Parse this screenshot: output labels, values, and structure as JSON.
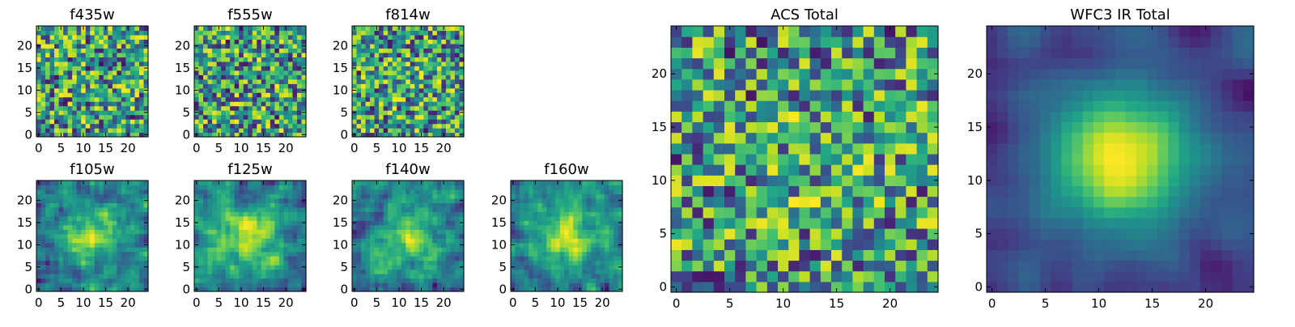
{
  "chart_data": {
    "type": "heatmap",
    "colormap": "viridis",
    "grid": "25x25 pixel cutouts (random noise field)",
    "panels": [
      {
        "name": "f435w",
        "title": "f435w",
        "xticks": [
          "0",
          "5",
          "10",
          "15",
          "20"
        ],
        "yticks": [
          "0",
          "5",
          "10",
          "15",
          "20"
        ],
        "xlim": [
          0,
          25
        ],
        "ylim": [
          0,
          25
        ],
        "seed": 11,
        "smooth": 0,
        "blob": 0.0,
        "noise": 1.0
      },
      {
        "name": "f555w",
        "title": "f555w",
        "xticks": [
          "0",
          "5",
          "10",
          "15",
          "20"
        ],
        "yticks": [
          "0",
          "5",
          "10",
          "15",
          "20"
        ],
        "xlim": [
          0,
          25
        ],
        "ylim": [
          0,
          25
        ],
        "seed": 23,
        "smooth": 0,
        "blob": 0.0,
        "noise": 1.0
      },
      {
        "name": "f814w",
        "title": "f814w",
        "xticks": [
          "0",
          "5",
          "10",
          "15",
          "20"
        ],
        "yticks": [
          "0",
          "5",
          "10",
          "15",
          "20"
        ],
        "xlim": [
          0,
          25
        ],
        "ylim": [
          0,
          25
        ],
        "seed": 37,
        "smooth": 0,
        "blob": 0.05,
        "noise": 1.0
      },
      {
        "name": "f105w",
        "title": "f105w",
        "xticks": [
          "0",
          "5",
          "10",
          "15",
          "20"
        ],
        "yticks": [
          "0",
          "5",
          "10",
          "15",
          "20"
        ],
        "xlim": [
          0,
          25
        ],
        "ylim": [
          0,
          25
        ],
        "seed": 41,
        "smooth": 1,
        "blob": 0.25,
        "noise": 0.6
      },
      {
        "name": "f125w",
        "title": "f125w",
        "xticks": [
          "0",
          "5",
          "10",
          "15",
          "20"
        ],
        "yticks": [
          "0",
          "5",
          "10",
          "15",
          "20"
        ],
        "xlim": [
          0,
          25
        ],
        "ylim": [
          0,
          25
        ],
        "seed": 53,
        "smooth": 1,
        "blob": 0.25,
        "noise": 0.6
      },
      {
        "name": "f140w",
        "title": "f140w",
        "xticks": [
          "0",
          "5",
          "10",
          "15",
          "20"
        ],
        "yticks": [
          "0",
          "5",
          "10",
          "15",
          "20"
        ],
        "xlim": [
          0,
          25
        ],
        "ylim": [
          0,
          25
        ],
        "seed": 67,
        "smooth": 1,
        "blob": 0.2,
        "noise": 0.6
      },
      {
        "name": "f160w",
        "title": "f160w",
        "xticks": [
          "0",
          "5",
          "10",
          "15",
          "20"
        ],
        "yticks": [
          "0",
          "5",
          "10",
          "15",
          "20"
        ],
        "xlim": [
          0,
          25
        ],
        "ylim": [
          0,
          25
        ],
        "seed": 79,
        "smooth": 1,
        "blob": 0.3,
        "noise": 0.6
      },
      {
        "name": "acs-total",
        "title": "ACS Total",
        "xticks": [
          "0",
          "5",
          "10",
          "15",
          "20"
        ],
        "yticks": [
          "0",
          "5",
          "10",
          "15",
          "20"
        ],
        "xlim": [
          0,
          25
        ],
        "ylim": [
          0,
          25
        ],
        "seed": 97,
        "smooth": 0,
        "blob": 0.05,
        "noise": 0.9
      },
      {
        "name": "wfc3-ir-total",
        "title": "WFC3 IR Total",
        "xticks": [
          "0",
          "5",
          "10",
          "15",
          "20"
        ],
        "yticks": [
          "0",
          "5",
          "10",
          "15",
          "20"
        ],
        "xlim": [
          0,
          25
        ],
        "ylim": [
          0,
          25
        ],
        "seed": 113,
        "smooth": 2,
        "blob": 0.45,
        "noise": 0.35
      }
    ]
  }
}
